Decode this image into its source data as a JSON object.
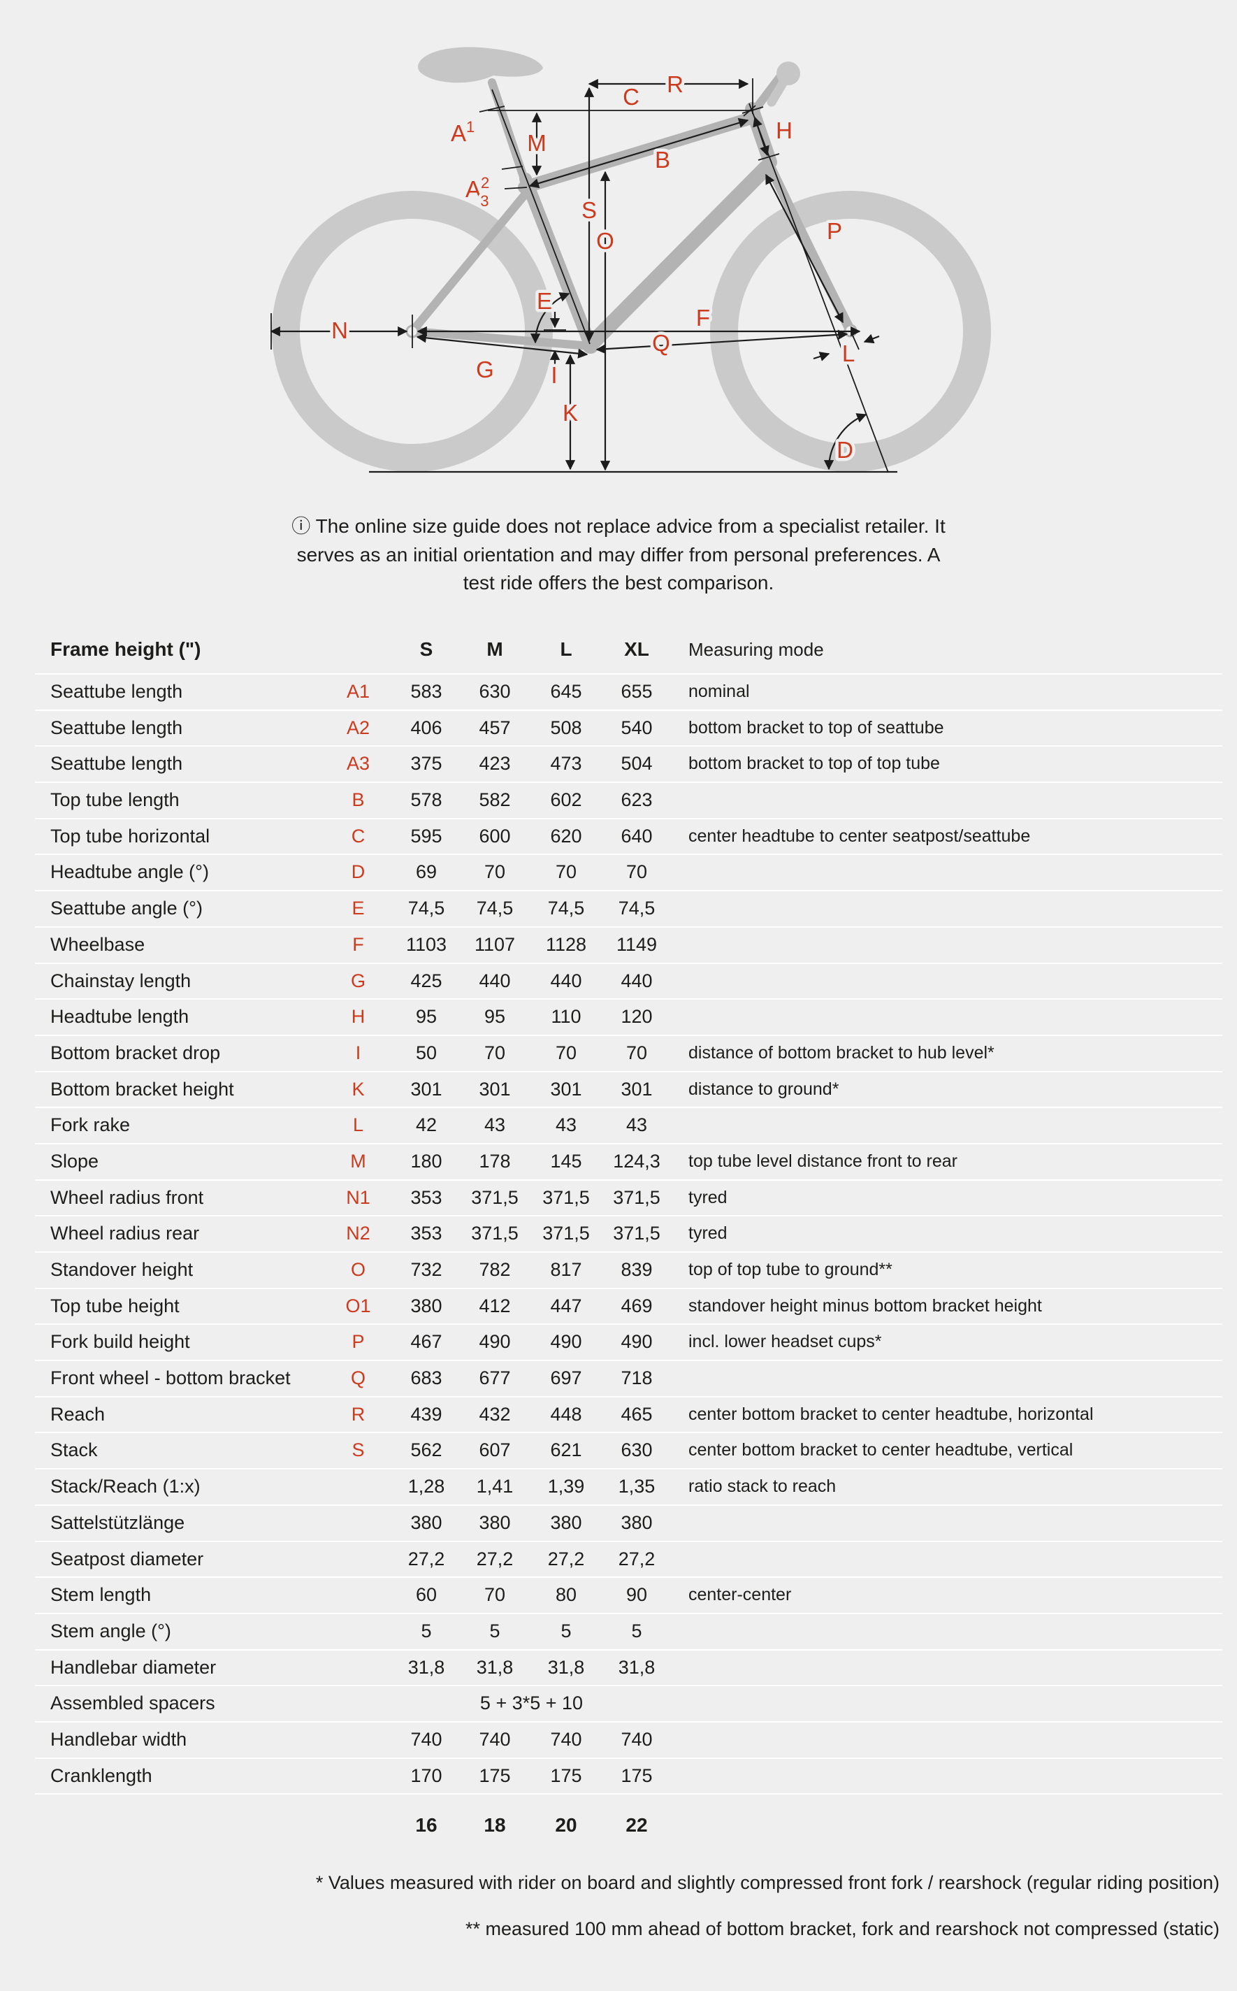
{
  "diagram": {
    "label_color": "#cc3b1e",
    "labels": {
      "R": "R",
      "C": "C",
      "M": "M",
      "B": "B",
      "H": "H",
      "S": "S",
      "O": "O",
      "E": "E",
      "P": "P",
      "N": "N",
      "G": "G",
      "I": "I",
      "F": "F",
      "Q": "Q",
      "L": "L",
      "K": "K",
      "D": "D",
      "A1": {
        "base": "A",
        "sup": "1"
      },
      "A23": {
        "base": "A",
        "sup": "2",
        "sub": "3"
      }
    }
  },
  "info": {
    "icon": "ⓘ",
    "lines": [
      "The online size guide does not replace advice from a specialist retailer. It",
      "serves as an initial orientation and may differ from personal preferences. A",
      "test ride offers the best comparison."
    ]
  },
  "table": {
    "title": "Frame height (\")",
    "size_headers": [
      "S",
      "M",
      "L",
      "XL"
    ],
    "mode_header": "Measuring mode",
    "rows": [
      {
        "label": "Seattube length",
        "code": "A1",
        "values": [
          "583",
          "630",
          "645",
          "655"
        ],
        "mode": "nominal"
      },
      {
        "label": "Seattube length",
        "code": "A2",
        "values": [
          "406",
          "457",
          "508",
          "540"
        ],
        "mode": "bottom bracket to top of seattube"
      },
      {
        "label": "Seattube length",
        "code": "A3",
        "values": [
          "375",
          "423",
          "473",
          "504"
        ],
        "mode": "bottom bracket to top of top tube"
      },
      {
        "label": "Top tube length",
        "code": "B",
        "values": [
          "578",
          "582",
          "602",
          "623"
        ],
        "mode": ""
      },
      {
        "label": "Top tube horizontal",
        "code": "C",
        "values": [
          "595",
          "600",
          "620",
          "640"
        ],
        "mode": "center headtube to center seatpost/seattube"
      },
      {
        "label": "Headtube angle (°)",
        "code": "D",
        "values": [
          "69",
          "70",
          "70",
          "70"
        ],
        "mode": ""
      },
      {
        "label": "Seattube angle (°)",
        "code": "E",
        "values": [
          "74,5",
          "74,5",
          "74,5",
          "74,5"
        ],
        "mode": ""
      },
      {
        "label": "Wheelbase",
        "code": "F",
        "values": [
          "1103",
          "1107",
          "1128",
          "1149"
        ],
        "mode": ""
      },
      {
        "label": "Chainstay length",
        "code": "G",
        "values": [
          "425",
          "440",
          "440",
          "440"
        ],
        "mode": ""
      },
      {
        "label": "Headtube length",
        "code": "H",
        "values": [
          "95",
          "95",
          "110",
          "120"
        ],
        "mode": ""
      },
      {
        "label": "Bottom bracket drop",
        "code": "I",
        "values": [
          "50",
          "70",
          "70",
          "70"
        ],
        "mode": "distance of bottom bracket to hub level*"
      },
      {
        "label": "Bottom bracket height",
        "code": "K",
        "values": [
          "301",
          "301",
          "301",
          "301"
        ],
        "mode": "distance to ground*"
      },
      {
        "label": "Fork rake",
        "code": "L",
        "values": [
          "42",
          "43",
          "43",
          "43"
        ],
        "mode": ""
      },
      {
        "label": "Slope",
        "code": "M",
        "values": [
          "180",
          "178",
          "145",
          "124,3"
        ],
        "mode": "top tube level distance front to rear"
      },
      {
        "label": "Wheel radius front",
        "code": "N1",
        "values": [
          "353",
          "371,5",
          "371,5",
          "371,5"
        ],
        "mode": "tyred"
      },
      {
        "label": "Wheel radius rear",
        "code": "N2",
        "values": [
          "353",
          "371,5",
          "371,5",
          "371,5"
        ],
        "mode": "tyred"
      },
      {
        "label": "Standover height",
        "code": "O",
        "values": [
          "732",
          "782",
          "817",
          "839"
        ],
        "mode": "top of top tube to ground**"
      },
      {
        "label": "Top tube height",
        "code": "O1",
        "values": [
          "380",
          "412",
          "447",
          "469"
        ],
        "mode": "standover height minus bottom bracket height"
      },
      {
        "label": "Fork build height",
        "code": "P",
        "values": [
          "467",
          "490",
          "490",
          "490"
        ],
        "mode": "incl. lower headset cups*"
      },
      {
        "label": "Front wheel - bottom bracket",
        "code": "Q",
        "values": [
          "683",
          "677",
          "697",
          "718"
        ],
        "mode": ""
      },
      {
        "label": "Reach",
        "code": "R",
        "values": [
          "439",
          "432",
          "448",
          "465"
        ],
        "mode": "center bottom bracket to center headtube, horizontal"
      },
      {
        "label": "Stack",
        "code": "S",
        "values": [
          "562",
          "607",
          "621",
          "630"
        ],
        "mode": "center bottom bracket to center headtube, vertical"
      },
      {
        "label": "Stack/Reach (1:x)",
        "code": "",
        "values": [
          "1,28",
          "1,41",
          "1,39",
          "1,35"
        ],
        "mode": "ratio stack to reach"
      },
      {
        "label": "Sattelstützlänge",
        "code": "",
        "values": [
          "380",
          "380",
          "380",
          "380"
        ],
        "mode": ""
      },
      {
        "label": "Seatpost diameter",
        "code": "",
        "values": [
          "27,2",
          "27,2",
          "27,2",
          "27,2"
        ],
        "mode": ""
      },
      {
        "label": "Stem length",
        "code": "",
        "values": [
          "60",
          "70",
          "80",
          "90"
        ],
        "mode": "center-center"
      },
      {
        "label": "Stem angle (°)",
        "code": "",
        "values": [
          "5",
          "5",
          "5",
          "5"
        ],
        "mode": ""
      },
      {
        "label": "Handlebar diameter",
        "code": "",
        "values": [
          "31,8",
          "31,8",
          "31,8",
          "31,8"
        ],
        "mode": ""
      },
      {
        "label": "Assembled spacers",
        "code": "",
        "span_value": "5 + 3*5 + 10",
        "mode": ""
      },
      {
        "label": "Handlebar width",
        "code": "",
        "values": [
          "740",
          "740",
          "740",
          "740"
        ],
        "mode": ""
      },
      {
        "label": "Cranklength",
        "code": "",
        "values": [
          "170",
          "175",
          "175",
          "175"
        ],
        "mode": ""
      }
    ],
    "sizes_row": [
      "16",
      "18",
      "20",
      "22"
    ]
  },
  "notes": [
    "* Values measured with rider on board and slightly compressed front fork / rearshock (regular riding position)",
    "** measured 100 mm ahead of bottom bracket, fork and rearshock not compressed (static)"
  ]
}
